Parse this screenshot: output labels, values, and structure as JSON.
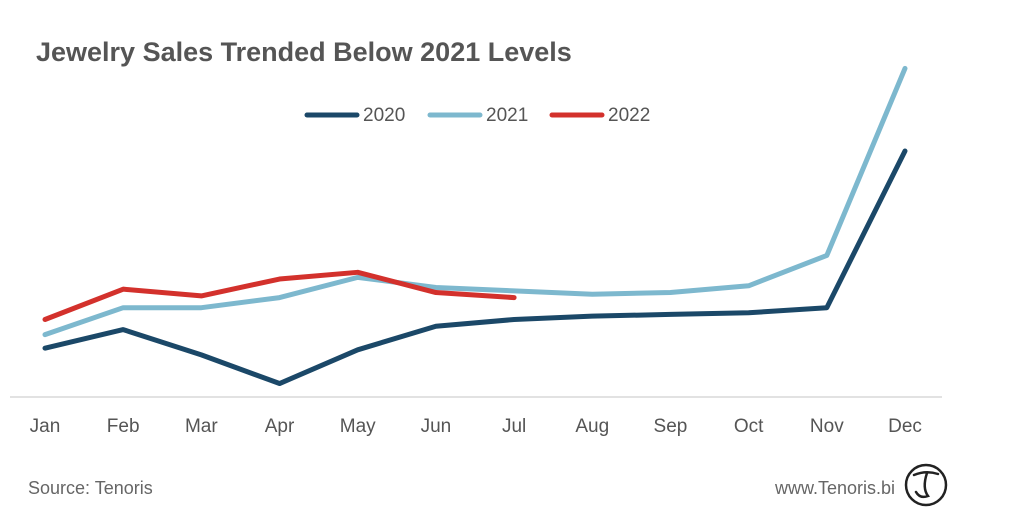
{
  "chart_data": {
    "type": "line",
    "title": "Jewelry Sales Trended Below 2021 Levels",
    "categories": [
      "Jan",
      "Feb",
      "Mar",
      "Apr",
      "May",
      "Jun",
      "Jul",
      "Aug",
      "Sep",
      "Oct",
      "Nov",
      "Dec"
    ],
    "series": [
      {
        "name": "2020",
        "color": "#1b4868",
        "values": [
          14.5,
          20,
          12.5,
          4,
          14,
          21,
          23,
          24,
          24.5,
          25,
          26.5,
          73
        ]
      },
      {
        "name": "2021",
        "color": "#7db8ce",
        "values": [
          18.5,
          26.5,
          26.5,
          29.5,
          35.5,
          32.5,
          31.5,
          30.5,
          31,
          33,
          42,
          97.5
        ]
      },
      {
        "name": "2022",
        "color": "#d3312c",
        "values": [
          23,
          32,
          30,
          35,
          37,
          31,
          29.5,
          null,
          null,
          null,
          null,
          null
        ]
      }
    ],
    "ylim": [
      0,
      100
    ],
    "legend": "top",
    "source": "Source: Tenoris",
    "website": "www.Tenoris.bi"
  }
}
